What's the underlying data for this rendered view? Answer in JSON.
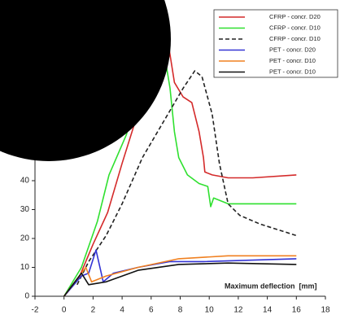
{
  "chart_data": {
    "type": "line",
    "x_label": "Maximum deflection  [mm]",
    "xlim": [
      -2,
      18
    ],
    "xticks": [
      -2,
      0,
      2,
      4,
      6,
      8,
      10,
      12,
      14,
      16,
      18
    ],
    "ylim": [
      0,
      100
    ],
    "yticks": [
      0,
      10,
      20,
      30,
      40
    ],
    "legend": "upper right",
    "series": [
      {
        "name": "CFRP - concr. D20",
        "color": "#d42a2a",
        "style": "solid",
        "x": [
          0,
          1,
          2,
          3,
          4,
          5,
          6,
          7.1,
          7.6,
          8.2,
          8.8,
          9.3,
          9.6,
          9.7,
          10.2,
          11.3,
          13,
          16
        ],
        "values": [
          0,
          6,
          18,
          29,
          46,
          62,
          80,
          90,
          74,
          69,
          67,
          57,
          48,
          43,
          42,
          41,
          41,
          42
        ]
      },
      {
        "name": "CFRP - concr. D10",
        "color": "#2fe02f",
        "style": "solid",
        "x": [
          0,
          1.2,
          2.3,
          3.1,
          4.3,
          4.8,
          5.1,
          6.5,
          7,
          7.3,
          7.6,
          7.9,
          8.5,
          9.3,
          9.9,
          10.1,
          10.3,
          11.3,
          13,
          16
        ],
        "values": [
          0,
          10,
          26,
          42,
          56,
          66,
          67,
          81,
          81,
          72,
          57,
          48,
          42,
          39,
          38,
          31,
          34,
          32,
          32,
          32
        ]
      },
      {
        "name": "CFRP - concr. D10",
        "color": "#222222",
        "style": "dashed",
        "x": [
          0.9,
          1.7,
          2.9,
          4,
          5.4,
          6.8,
          8.2,
          9,
          9.5,
          10.2,
          10.7,
          11.3,
          12.1,
          13.5,
          16
        ],
        "values": [
          4,
          12,
          21,
          32,
          48,
          60,
          72,
          78,
          76,
          63,
          46,
          32,
          28,
          25,
          21
        ]
      },
      {
        "name": "PET - concr. D20",
        "color": "#3434d4",
        "style": "solid",
        "x": [
          0,
          1.2,
          1.7,
          2.2,
          2.7,
          3.4,
          5.1,
          7.3,
          9.6,
          16
        ],
        "values": [
          0,
          7,
          8,
          16,
          5,
          8,
          10,
          12,
          12,
          13
        ]
      },
      {
        "name": "PET - concr. D10",
        "color": "#f08020",
        "style": "solid",
        "x": [
          0,
          1.5,
          1.9,
          2.9,
          5.1,
          7.9,
          11.3,
          16
        ],
        "values": [
          0,
          10,
          5,
          7,
          10,
          13,
          14,
          14
        ]
      },
      {
        "name": "PET - concr. D10",
        "color": "#111111",
        "style": "solid",
        "x": [
          0,
          1.2,
          1.7,
          2.9,
          5.1,
          7.9,
          11.3,
          16
        ],
        "values": [
          0,
          8,
          4,
          5,
          9,
          11,
          11.5,
          11
        ]
      }
    ]
  }
}
